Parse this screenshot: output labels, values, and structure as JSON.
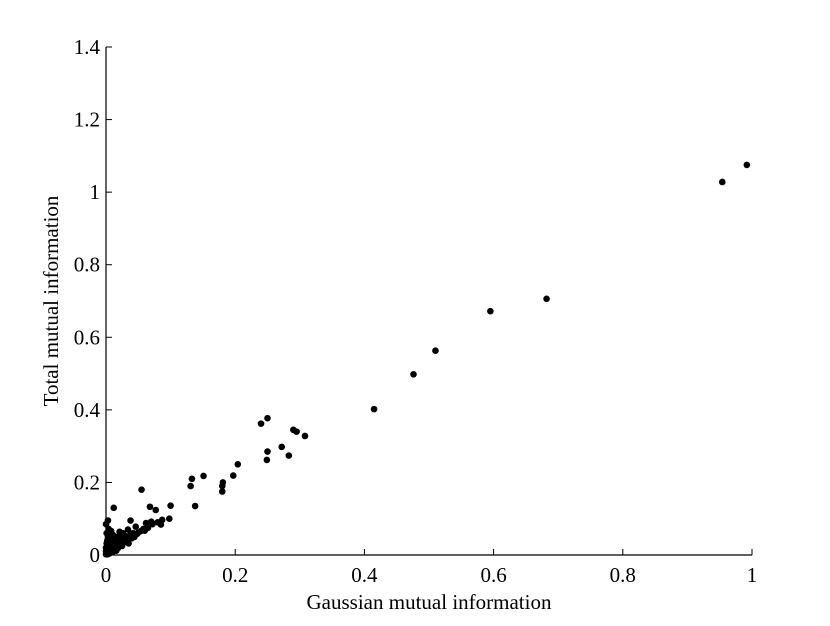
{
  "chart_data": {
    "type": "scatter",
    "title": "",
    "xlabel": "Gaussian mutual information",
    "ylabel": "Total mutual information",
    "xlim": [
      0,
      1
    ],
    "ylim": [
      0,
      1.4
    ],
    "xticks": [
      0,
      0.2,
      0.4,
      0.6,
      0.8,
      1
    ],
    "xtick_labels": [
      "0",
      "0.2",
      "0.4",
      "0.6",
      "0.8",
      "1"
    ],
    "yticks": [
      0,
      0.2,
      0.4,
      0.6,
      0.8,
      1,
      1.2,
      1.4
    ],
    "ytick_labels": [
      "0",
      "0.2",
      "0.4",
      "0.6",
      "0.8",
      "1",
      "1.2",
      "1.4"
    ],
    "grid": false,
    "marker_color": "#000000",
    "series": [
      {
        "points": [
          [
            0.992,
            1.075
          ],
          [
            0.954,
            1.028
          ],
          [
            0.682,
            0.706
          ],
          [
            0.595,
            0.672
          ],
          [
            0.51,
            0.563
          ],
          [
            0.476,
            0.498
          ],
          [
            0.415,
            0.402
          ],
          [
            0.308,
            0.328
          ],
          [
            0.295,
            0.34
          ],
          [
            0.29,
            0.345
          ],
          [
            0.283,
            0.274
          ],
          [
            0.272,
            0.298
          ],
          [
            0.25,
            0.377
          ],
          [
            0.25,
            0.285
          ],
          [
            0.249,
            0.262
          ],
          [
            0.24,
            0.362
          ],
          [
            0.204,
            0.25
          ],
          [
            0.197,
            0.219
          ],
          [
            0.181,
            0.2
          ],
          [
            0.18,
            0.19
          ],
          [
            0.18,
            0.175
          ],
          [
            0.151,
            0.218
          ],
          [
            0.138,
            0.135
          ],
          [
            0.133,
            0.21
          ],
          [
            0.131,
            0.19
          ],
          [
            0.1,
            0.136
          ],
          [
            0.098,
            0.1
          ],
          [
            0.087,
            0.097
          ],
          [
            0.085,
            0.084
          ],
          [
            0.08,
            0.09
          ],
          [
            0.077,
            0.124
          ],
          [
            0.072,
            0.085
          ],
          [
            0.07,
            0.092
          ],
          [
            0.068,
            0.133
          ],
          [
            0.065,
            0.075
          ],
          [
            0.062,
            0.088
          ],
          [
            0.06,
            0.067
          ],
          [
            0.058,
            0.072
          ],
          [
            0.055,
            0.18
          ],
          [
            0.054,
            0.066
          ],
          [
            0.05,
            0.062
          ],
          [
            0.048,
            0.058
          ],
          [
            0.046,
            0.078
          ],
          [
            0.044,
            0.05
          ],
          [
            0.042,
            0.06
          ],
          [
            0.04,
            0.046
          ],
          [
            0.038,
            0.095
          ],
          [
            0.037,
            0.054
          ],
          [
            0.035,
            0.032
          ],
          [
            0.034,
            0.07
          ],
          [
            0.032,
            0.04
          ],
          [
            0.03,
            0.052
          ],
          [
            0.028,
            0.035
          ],
          [
            0.026,
            0.06
          ],
          [
            0.025,
            0.025
          ],
          [
            0.024,
            0.045
          ],
          [
            0.022,
            0.028
          ],
          [
            0.021,
            0.064
          ],
          [
            0.02,
            0.038
          ],
          [
            0.019,
            0.02
          ],
          [
            0.018,
            0.05
          ],
          [
            0.017,
            0.03
          ],
          [
            0.016,
            0.012
          ],
          [
            0.015,
            0.042
          ],
          [
            0.014,
            0.024
          ],
          [
            0.013,
            0.035
          ],
          [
            0.012,
            0.13
          ],
          [
            0.012,
            0.015
          ],
          [
            0.011,
            0.055
          ],
          [
            0.01,
            0.028
          ],
          [
            0.01,
            0.008
          ],
          [
            0.009,
            0.04
          ],
          [
            0.009,
            0.018
          ],
          [
            0.008,
            0.066
          ],
          [
            0.008,
            0.03
          ],
          [
            0.007,
            0.01
          ],
          [
            0.007,
            0.045
          ],
          [
            0.006,
            0.022
          ],
          [
            0.006,
            0.005
          ],
          [
            0.005,
            0.035
          ],
          [
            0.005,
            0.014
          ],
          [
            0.004,
            0.072
          ],
          [
            0.004,
            0.028
          ],
          [
            0.004,
            0.003
          ],
          [
            0.003,
            0.095
          ],
          [
            0.003,
            0.05
          ],
          [
            0.003,
            0.018
          ],
          [
            0.003,
            0.008
          ],
          [
            0.002,
            0.04
          ],
          [
            0.002,
            0.025
          ],
          [
            0.002,
            0.012
          ],
          [
            0.002,
            0.002
          ],
          [
            0.001,
            0.06
          ],
          [
            0.001,
            0.032
          ],
          [
            0.001,
            0.015
          ],
          [
            0.001,
            0.006
          ],
          [
            0.0,
            0.02
          ],
          [
            0.0,
            0.01
          ],
          [
            0.0,
            0.002
          ],
          [
            0.0,
            0.085
          ]
        ]
      }
    ]
  }
}
